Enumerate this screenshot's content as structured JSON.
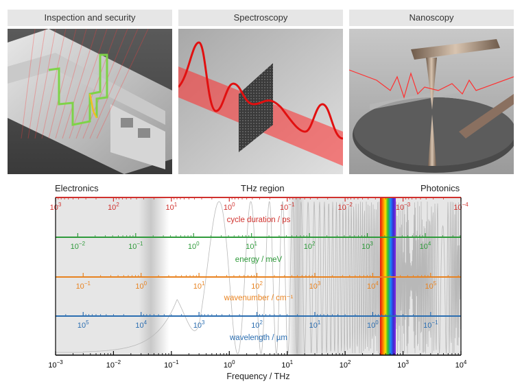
{
  "panels": [
    {
      "title": "Inspection and security",
      "icon": "window-profile-inspection-image"
    },
    {
      "title": "Spectroscopy",
      "icon": "spectroscopy-beam-image"
    },
    {
      "title": "Nanoscopy",
      "icon": "nanoscopy-tip-image"
    }
  ],
  "regions": {
    "left": "Electronics",
    "middle": "THz region",
    "right": "Photonics"
  },
  "colors": {
    "cycle": "#d0312d",
    "energy": "#2e9a3a",
    "wavenumber": "#e8821f",
    "wavelength": "#2a6db0",
    "axis": "#000000",
    "shade": "#e6e6e6"
  },
  "chart_data": {
    "type": "scale-diagram",
    "x_axis": {
      "label": "Frequency / THz",
      "scale": "log",
      "range": [
        0.001,
        10000
      ],
      "ticks": [
        {
          "value": 0.001,
          "label": "10",
          "exp": "−3"
        },
        {
          "value": 0.01,
          "label": "10",
          "exp": "−2"
        },
        {
          "value": 0.1,
          "label": "10",
          "exp": "−1"
        },
        {
          "value": 1,
          "label": "10",
          "exp": "0"
        },
        {
          "value": 10,
          "label": "10",
          "exp": "1"
        },
        {
          "value": 100,
          "label": "10",
          "exp": "2"
        },
        {
          "value": 1000,
          "label": "10",
          "exp": "3"
        },
        {
          "value": 10000,
          "label": "10",
          "exp": "4"
        }
      ]
    },
    "thz_region": [
      0.05,
      20
    ],
    "visible_band": [
      400,
      750
    ],
    "scales": [
      {
        "key": "cycle",
        "label": "cycle duration / ps",
        "ticks": [
          {
            "label": "10",
            "exp": "3",
            "value": 1000
          },
          {
            "label": "10",
            "exp": "2",
            "value": 100
          },
          {
            "label": "10",
            "exp": "1",
            "value": 10
          },
          {
            "label": "10",
            "exp": "0",
            "value": 1
          },
          {
            "label": "10",
            "exp": "−1",
            "value": 0.1
          },
          {
            "label": "10",
            "exp": "−2",
            "value": 0.01
          },
          {
            "label": "10",
            "exp": "−3",
            "value": 0.001
          },
          {
            "label": "10",
            "exp": "−4",
            "value": 0.0001
          }
        ]
      },
      {
        "key": "energy",
        "label": "energy / meV",
        "ticks": [
          {
            "label": "10",
            "exp": "−2",
            "value": 0.01
          },
          {
            "label": "10",
            "exp": "−1",
            "value": 0.1
          },
          {
            "label": "10",
            "exp": "0",
            "value": 1
          },
          {
            "label": "10",
            "exp": "1",
            "value": 10
          },
          {
            "label": "10",
            "exp": "2",
            "value": 100
          },
          {
            "label": "10",
            "exp": "3",
            "value": 1000
          },
          {
            "label": "10",
            "exp": "4",
            "value": 10000
          }
        ]
      },
      {
        "key": "wavenumber",
        "label": "wavenumber / cm⁻¹",
        "ticks": [
          {
            "label": "10",
            "exp": "−1",
            "value": 0.1
          },
          {
            "label": "10",
            "exp": "0",
            "value": 1
          },
          {
            "label": "10",
            "exp": "1",
            "value": 10
          },
          {
            "label": "10",
            "exp": "2",
            "value": 100
          },
          {
            "label": "10",
            "exp": "3",
            "value": 1000
          },
          {
            "label": "10",
            "exp": "4",
            "value": 10000
          },
          {
            "label": "10",
            "exp": "5",
            "value": 100000
          }
        ]
      },
      {
        "key": "wavelength",
        "label": "wavelength / µm",
        "ticks": [
          {
            "label": "10",
            "exp": "5",
            "value": 100000
          },
          {
            "label": "10",
            "exp": "4",
            "value": 10000
          },
          {
            "label": "10",
            "exp": "3",
            "value": 1000
          },
          {
            "label": "10",
            "exp": "2",
            "value": 100
          },
          {
            "label": "10",
            "exp": "1",
            "value": 10
          },
          {
            "label": "10",
            "exp": "0",
            "value": 1
          },
          {
            "label": "10",
            "exp": "−1",
            "value": 0.1
          }
        ]
      }
    ]
  }
}
